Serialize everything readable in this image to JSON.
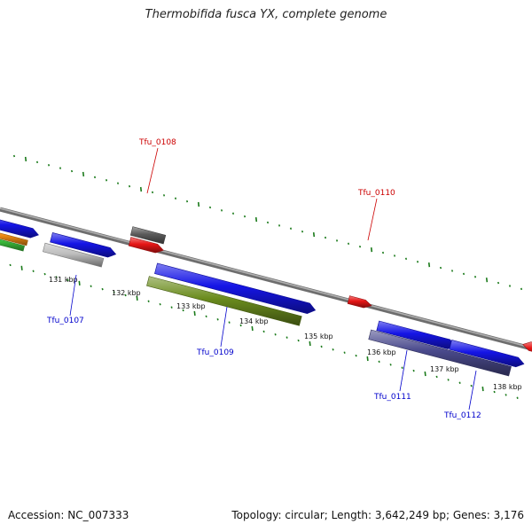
{
  "title": "Thermobifida fusca YX, complete genome",
  "footer": {
    "accession": "Accession: NC_007333",
    "topology": "Topology: circular; Length: 3,642,249 bp; Genes: 3,176"
  },
  "colors": {
    "backbone": "#8a8a8a",
    "tick": "#1a7a1a",
    "forward_gene": "#1515e6",
    "reverse_gene": "#e61515",
    "label_forward": "#0000cc",
    "label_reverse": "#cc0000",
    "pseudo": "#5a5a5a",
    "gray_feature": "#bdbdbd",
    "olive_feature": "#6b8c1e",
    "purple_feature": "#4a4a8c",
    "orange_feature": "#f08c14",
    "green_feature": "#3cbf3c"
  },
  "scale_labels": [
    "131 kbp",
    "132 kbp",
    "133 kbp",
    "134 kbp",
    "135 kbp",
    "136 kbp",
    "137 kbp",
    "138 kbp"
  ],
  "gene_labels": [
    {
      "id": "Tfu_0107",
      "strand": "forward"
    },
    {
      "id": "Tfu_0108",
      "strand": "reverse"
    },
    {
      "id": "Tfu_0109",
      "strand": "forward"
    },
    {
      "id": "Tfu_0110",
      "strand": "reverse"
    },
    {
      "id": "Tfu_0111",
      "strand": "forward"
    },
    {
      "id": "Tfu_0112",
      "strand": "forward"
    }
  ]
}
